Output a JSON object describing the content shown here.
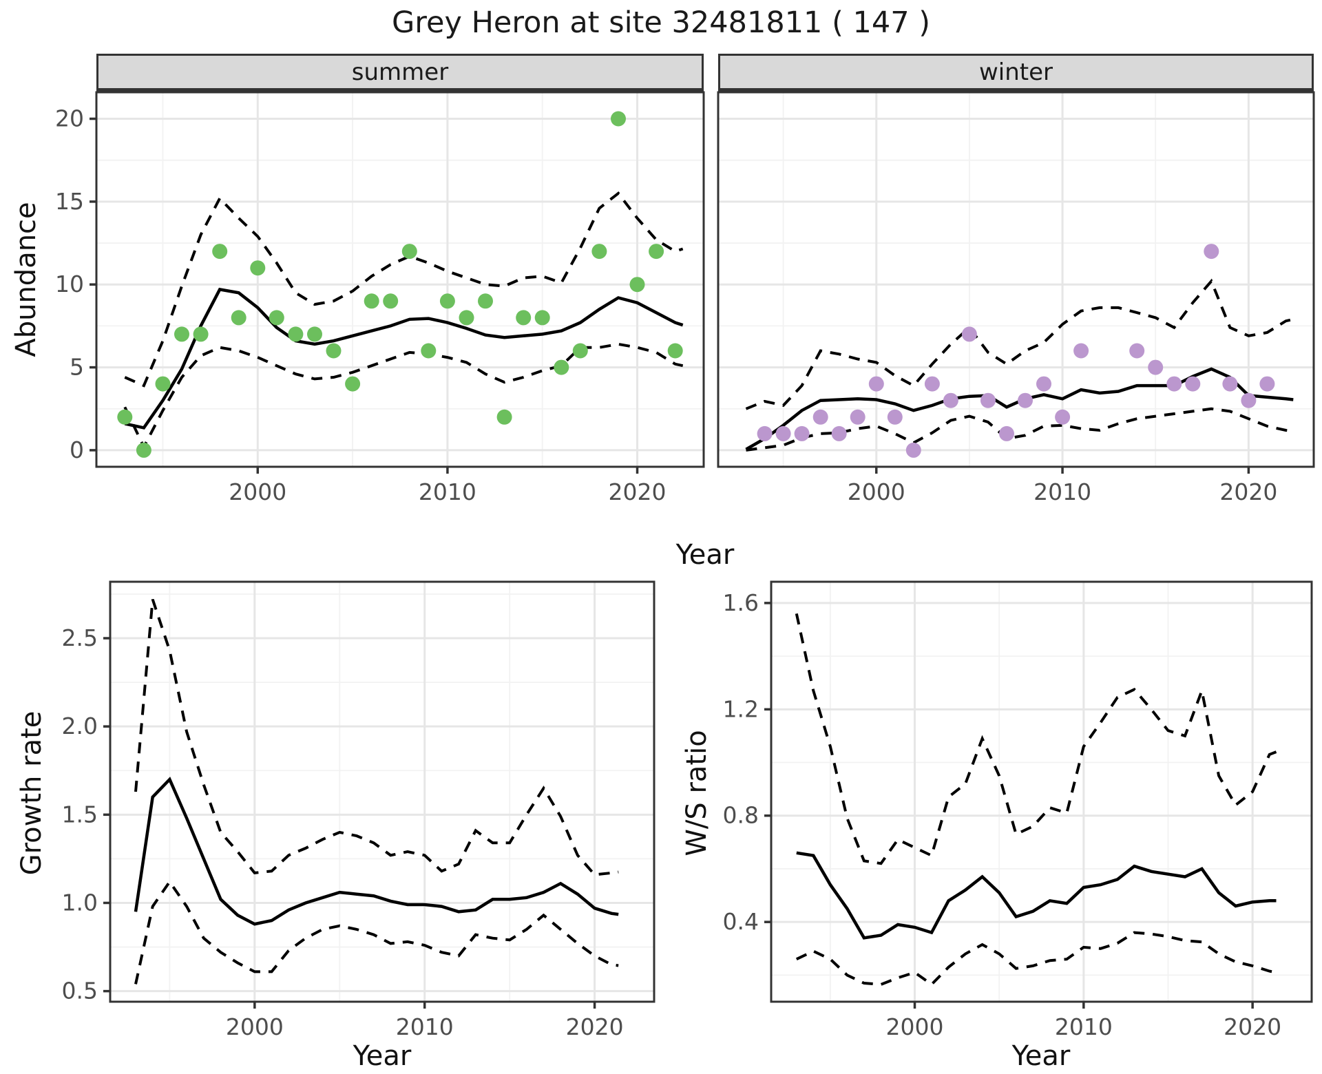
{
  "title": "Grey Heron at site 32481811 ( 147 )",
  "top_row": {
    "facets": [
      "summer",
      "winter"
    ],
    "shared_ylabel": "Abundance",
    "shared_xlabel": "Year"
  },
  "bottom_row": {
    "left_ylabel": "Growth rate",
    "left_xlabel": "Year",
    "right_ylabel": "W/S ratio",
    "right_xlabel": "Year"
  },
  "colors": {
    "summer_point": "#6CBF5D",
    "winter_point": "#BB97CE",
    "line": "#000000",
    "strip_bg": "#d9d9d9",
    "panel_border": "#333333",
    "grid_major": "#e6e6e6",
    "grid_minor": "#f2f2f2",
    "tick_text": "#4d4d4d"
  },
  "chart_data": [
    {
      "id": "abundance_summer",
      "type": "scatter",
      "facet": "summer",
      "ylabel": "Abundance",
      "xlabel": "Year",
      "xlim": [
        1991.5,
        2023.5
      ],
      "ylim": [
        -1,
        21.6
      ],
      "x_ticks": [
        2000,
        2010,
        2020
      ],
      "x_tick_labels": [
        "2000",
        "2010",
        "2020"
      ],
      "x_minor": [
        1995,
        2005,
        2015
      ],
      "y_ticks": [
        0,
        5,
        10,
        15,
        20
      ],
      "y_tick_labels": [
        "0",
        "5",
        "10",
        "15",
        "20"
      ],
      "y_minor": [
        2.5,
        7.5,
        12.5,
        17.5
      ],
      "points": [
        [
          1993,
          2
        ],
        [
          1994,
          0
        ],
        [
          1995,
          4
        ],
        [
          1996,
          7
        ],
        [
          1997,
          7
        ],
        [
          1998,
          12
        ],
        [
          1999,
          8
        ],
        [
          2000,
          11
        ],
        [
          2001,
          8
        ],
        [
          2002,
          7
        ],
        [
          2003,
          7
        ],
        [
          2004,
          6
        ],
        [
          2005,
          4
        ],
        [
          2006,
          9
        ],
        [
          2007,
          9
        ],
        [
          2008,
          12
        ],
        [
          2009,
          6
        ],
        [
          2010,
          9
        ],
        [
          2011,
          8
        ],
        [
          2012,
          9
        ],
        [
          2013,
          2
        ],
        [
          2014,
          8
        ],
        [
          2015,
          8
        ],
        [
          2016,
          5
        ],
        [
          2017,
          6
        ],
        [
          2018,
          12
        ],
        [
          2019,
          20
        ],
        [
          2020,
          10
        ],
        [
          2021,
          12
        ],
        [
          2022,
          6
        ]
      ],
      "mean_line": {
        "x": [
          1993,
          1994,
          1995,
          1996,
          1997,
          1998,
          1999,
          2000,
          2001,
          2002,
          2003,
          2004,
          2005,
          2006,
          2007,
          2008,
          2009,
          2010,
          2011,
          2012,
          2013,
          2014,
          2015,
          2016,
          2017,
          2018,
          2019,
          2020,
          2021,
          2022,
          2022.4
        ],
        "y": [
          1.6,
          1.35,
          3.0,
          4.9,
          7.5,
          9.7,
          9.5,
          8.6,
          7.4,
          6.6,
          6.4,
          6.6,
          6.9,
          7.2,
          7.5,
          7.9,
          7.95,
          7.7,
          7.35,
          6.95,
          6.8,
          6.9,
          7.0,
          7.2,
          7.7,
          8.5,
          9.2,
          8.9,
          8.3,
          7.7,
          7.55
        ]
      },
      "upper_ci": {
        "x": [
          1993,
          1994,
          1995,
          1996,
          1997,
          1998,
          1999,
          2000,
          2001,
          2002,
          2003,
          2004,
          2005,
          2006,
          2007,
          2008,
          2009,
          2010,
          2011,
          2012,
          2013,
          2014,
          2015,
          2016,
          2017,
          2018,
          2019,
          2020,
          2021,
          2022,
          2022.4
        ],
        "y": [
          4.4,
          3.9,
          6.6,
          9.9,
          13.0,
          15.2,
          14.0,
          12.9,
          11.3,
          9.5,
          8.8,
          9.0,
          9.6,
          10.5,
          11.2,
          11.7,
          11.3,
          10.8,
          10.4,
          10.0,
          9.9,
          10.4,
          10.5,
          10.1,
          12.2,
          14.6,
          15.5,
          14.0,
          12.7,
          12.0,
          12.15
        ]
      },
      "lower_ci": {
        "x": [
          1993,
          1994,
          1995,
          1996,
          1997,
          1998,
          1999,
          2000,
          2001,
          2002,
          2003,
          2004,
          2005,
          2006,
          2007,
          2008,
          2009,
          2010,
          2011,
          2012,
          2013,
          2014,
          2015,
          2016,
          2017,
          2018,
          2019,
          2020,
          2021,
          2022,
          2022.4
        ],
        "y": [
          2.6,
          0.2,
          2.4,
          4.4,
          5.7,
          6.2,
          6.0,
          5.6,
          5.1,
          4.6,
          4.3,
          4.4,
          4.7,
          5.1,
          5.5,
          5.9,
          5.8,
          5.6,
          5.3,
          4.6,
          4.1,
          4.4,
          4.8,
          5.1,
          6.2,
          6.2,
          6.4,
          6.2,
          5.9,
          5.2,
          5.1
        ]
      },
      "point_color": "#6CBF5D"
    },
    {
      "id": "abundance_winter",
      "type": "scatter",
      "facet": "winter",
      "ylabel": "Abundance",
      "xlabel": "Year",
      "xlim": [
        1991.5,
        2023.5
      ],
      "ylim": [
        -1,
        21.6
      ],
      "x_ticks": [
        2000,
        2010,
        2020
      ],
      "x_tick_labels": [
        "2000",
        "2010",
        "2020"
      ],
      "x_minor": [
        1995,
        2005,
        2015
      ],
      "y_ticks": [
        0,
        5,
        10,
        15,
        20
      ],
      "y_tick_labels": [
        "0",
        "5",
        "10",
        "15",
        "20"
      ],
      "y_minor": [
        2.5,
        7.5,
        12.5,
        17.5
      ],
      "points": [
        [
          1994,
          1
        ],
        [
          1995,
          1
        ],
        [
          1996,
          1
        ],
        [
          1997,
          2
        ],
        [
          1998,
          1
        ],
        [
          1999,
          2
        ],
        [
          2000,
          4
        ],
        [
          2001,
          2
        ],
        [
          2002,
          0
        ],
        [
          2003,
          4
        ],
        [
          2004,
          3
        ],
        [
          2005,
          7
        ],
        [
          2006,
          3
        ],
        [
          2007,
          1
        ],
        [
          2008,
          3
        ],
        [
          2009,
          4
        ],
        [
          2010,
          2
        ],
        [
          2011,
          6
        ],
        [
          2014,
          6
        ],
        [
          2015,
          5
        ],
        [
          2016,
          4
        ],
        [
          2017,
          4
        ],
        [
          2018,
          12
        ],
        [
          2019,
          4
        ],
        [
          2020,
          3
        ],
        [
          2021,
          4
        ]
      ],
      "mean_line": {
        "x": [
          1993,
          1994,
          1995,
          1996,
          1997,
          1998,
          1999,
          2000,
          2001,
          2002,
          2003,
          2004,
          2005,
          2006,
          2007,
          2008,
          2009,
          2010,
          2011,
          2012,
          2013,
          2014,
          2015,
          2016,
          2017,
          2018,
          2019,
          2020,
          2021,
          2022,
          2022.4
        ],
        "y": [
          0.05,
          0.7,
          1.5,
          2.4,
          3.0,
          3.05,
          3.1,
          3.05,
          2.8,
          2.4,
          2.7,
          3.1,
          3.25,
          3.3,
          2.6,
          3.1,
          3.35,
          3.1,
          3.65,
          3.45,
          3.55,
          3.9,
          3.9,
          3.9,
          4.45,
          4.9,
          4.4,
          3.3,
          3.2,
          3.1,
          3.05
        ]
      },
      "upper_ci": {
        "x": [
          1993,
          1994,
          1995,
          1996,
          1997,
          1998,
          1999,
          2000,
          2001,
          2002,
          2003,
          2004,
          2005,
          2006,
          2007,
          2008,
          2009,
          2010,
          2011,
          2012,
          2013,
          2014,
          2015,
          2016,
          2017,
          2018,
          2019,
          2020,
          2021,
          2022,
          2022.4
        ],
        "y": [
          2.5,
          2.95,
          2.7,
          3.9,
          6.0,
          5.8,
          5.5,
          5.3,
          4.5,
          3.9,
          5.2,
          6.4,
          7.4,
          5.9,
          5.2,
          6.0,
          6.5,
          7.6,
          8.4,
          8.6,
          8.6,
          8.3,
          8.0,
          7.4,
          8.9,
          10.2,
          7.4,
          6.9,
          7.1,
          7.8,
          7.9
        ]
      },
      "lower_ci": {
        "x": [
          1993,
          1994,
          1995,
          1996,
          1997,
          1998,
          1999,
          2000,
          2001,
          2002,
          2003,
          2004,
          2005,
          2006,
          2007,
          2008,
          2009,
          2010,
          2011,
          2012,
          2013,
          2014,
          2015,
          2016,
          2017,
          2018,
          2019,
          2020,
          2021,
          2022,
          2022.4
        ],
        "y": [
          0.0,
          0.15,
          0.3,
          0.75,
          1.0,
          1.05,
          1.3,
          1.45,
          1.0,
          0.45,
          1.05,
          1.8,
          2.05,
          1.7,
          0.7,
          0.9,
          1.45,
          1.5,
          1.3,
          1.2,
          1.6,
          1.9,
          2.05,
          2.2,
          2.35,
          2.5,
          2.35,
          1.9,
          1.45,
          1.2,
          1.15
        ]
      },
      "point_color": "#BB97CE"
    },
    {
      "id": "growth_rate",
      "type": "line",
      "facet": null,
      "ylabel": "Growth rate",
      "xlabel": "Year",
      "xlim": [
        1991.5,
        2023.5
      ],
      "ylim": [
        0.44,
        2.82
      ],
      "x_ticks": [
        2000,
        2010,
        2020
      ],
      "x_tick_labels": [
        "2000",
        "2010",
        "2020"
      ],
      "x_minor": [
        1995,
        2005,
        2015
      ],
      "y_ticks": [
        0.5,
        1.0,
        1.5,
        2.0,
        2.5
      ],
      "y_tick_labels": [
        "0.5",
        "1.0",
        "1.5",
        "2.0",
        "2.5"
      ],
      "y_minor": [
        0.75,
        1.25,
        1.75,
        2.25,
        2.75
      ],
      "points": [],
      "mean_line": {
        "x": [
          1993,
          1994,
          1995,
          1996,
          1997,
          1998,
          1999,
          2000,
          2001,
          2002,
          2003,
          2004,
          2005,
          2006,
          2007,
          2008,
          2009,
          2010,
          2011,
          2012,
          2013,
          2014,
          2015,
          2016,
          2017,
          2018,
          2019,
          2020,
          2021,
          2021.4
        ],
        "y": [
          0.95,
          1.6,
          1.7,
          1.48,
          1.25,
          1.02,
          0.93,
          0.88,
          0.9,
          0.96,
          1.0,
          1.03,
          1.06,
          1.05,
          1.04,
          1.01,
          0.99,
          0.99,
          0.98,
          0.95,
          0.96,
          1.02,
          1.02,
          1.03,
          1.06,
          1.11,
          1.05,
          0.97,
          0.94,
          0.935
        ]
      },
      "upper_ci": {
        "x": [
          1993,
          1994,
          1995,
          1996,
          1997,
          1998,
          1999,
          2000,
          2001,
          2002,
          2003,
          2004,
          2005,
          2006,
          2007,
          2008,
          2009,
          2010,
          2011,
          2012,
          2013,
          2014,
          2015,
          2016,
          2017,
          2018,
          2019,
          2020,
          2021,
          2021.4
        ],
        "y": [
          1.63,
          2.72,
          2.43,
          1.97,
          1.67,
          1.4,
          1.29,
          1.17,
          1.18,
          1.27,
          1.31,
          1.36,
          1.4,
          1.38,
          1.34,
          1.27,
          1.29,
          1.27,
          1.18,
          1.22,
          1.41,
          1.34,
          1.34,
          1.5,
          1.65,
          1.49,
          1.27,
          1.16,
          1.17,
          1.175
        ]
      },
      "lower_ci": {
        "x": [
          1993,
          1994,
          1995,
          1996,
          1997,
          1998,
          1999,
          2000,
          2001,
          2002,
          2003,
          2004,
          2005,
          2006,
          2007,
          2008,
          2009,
          2010,
          2011,
          2012,
          2013,
          2014,
          2015,
          2016,
          2017,
          2018,
          2019,
          2020,
          2021,
          2021.4
        ],
        "y": [
          0.54,
          0.98,
          1.12,
          0.98,
          0.8,
          0.72,
          0.66,
          0.61,
          0.61,
          0.73,
          0.8,
          0.85,
          0.87,
          0.85,
          0.82,
          0.77,
          0.78,
          0.76,
          0.72,
          0.7,
          0.82,
          0.8,
          0.79,
          0.85,
          0.93,
          0.85,
          0.77,
          0.7,
          0.65,
          0.645
        ]
      },
      "point_color": null
    },
    {
      "id": "ws_ratio",
      "type": "line",
      "facet": null,
      "ylabel": "W/S ratio",
      "xlabel": "Year",
      "xlim": [
        1991.5,
        2023.5
      ],
      "ylim": [
        0.1,
        1.68
      ],
      "x_ticks": [
        2000,
        2010,
        2020
      ],
      "x_tick_labels": [
        "2000",
        "2010",
        "2020"
      ],
      "x_minor": [
        1995,
        2005,
        2015
      ],
      "y_ticks": [
        0.4,
        0.8,
        1.2,
        1.6
      ],
      "y_tick_labels": [
        "0.4",
        "0.8",
        "1.2",
        "1.6"
      ],
      "y_minor": [
        0.2,
        0.6,
        1.0,
        1.4
      ],
      "points": [],
      "mean_line": {
        "x": [
          1993,
          1994,
          1995,
          1996,
          1997,
          1998,
          1999,
          2000,
          2001,
          2002,
          2003,
          2004,
          2005,
          2006,
          2007,
          2008,
          2009,
          2010,
          2011,
          2012,
          2013,
          2014,
          2015,
          2016,
          2017,
          2018,
          2019,
          2020,
          2021,
          2021.4
        ],
        "y": [
          0.66,
          0.65,
          0.54,
          0.45,
          0.34,
          0.35,
          0.39,
          0.38,
          0.36,
          0.48,
          0.52,
          0.57,
          0.51,
          0.42,
          0.44,
          0.48,
          0.47,
          0.53,
          0.54,
          0.56,
          0.61,
          0.59,
          0.58,
          0.57,
          0.6,
          0.51,
          0.46,
          0.475,
          0.48,
          0.48
        ]
      },
      "upper_ci": {
        "x": [
          1993,
          1994,
          1995,
          1996,
          1997,
          1998,
          1999,
          2000,
          2001,
          2002,
          2003,
          2004,
          2005,
          2006,
          2007,
          2008,
          2009,
          2010,
          2011,
          2012,
          2013,
          2014,
          2015,
          2016,
          2017,
          2018,
          2019,
          2020,
          2021,
          2021.4
        ],
        "y": [
          1.56,
          1.27,
          1.06,
          0.79,
          0.63,
          0.62,
          0.71,
          0.68,
          0.65,
          0.87,
          0.92,
          1.09,
          0.95,
          0.73,
          0.76,
          0.83,
          0.81,
          1.06,
          1.15,
          1.245,
          1.275,
          1.2,
          1.12,
          1.1,
          1.27,
          0.95,
          0.84,
          0.89,
          1.03,
          1.04
        ]
      },
      "lower_ci": {
        "x": [
          1993,
          1994,
          1995,
          1996,
          1997,
          1998,
          1999,
          2000,
          2001,
          2002,
          2003,
          2004,
          2005,
          2006,
          2007,
          2008,
          2009,
          2010,
          2011,
          2012,
          2013,
          2014,
          2015,
          2016,
          2017,
          2018,
          2019,
          2020,
          2021,
          2021.4
        ],
        "y": [
          0.26,
          0.29,
          0.26,
          0.2,
          0.17,
          0.165,
          0.19,
          0.21,
          0.165,
          0.23,
          0.28,
          0.315,
          0.28,
          0.225,
          0.235,
          0.255,
          0.26,
          0.305,
          0.3,
          0.32,
          0.36,
          0.355,
          0.345,
          0.33,
          0.325,
          0.28,
          0.25,
          0.235,
          0.215,
          0.21
        ]
      },
      "point_color": null
    }
  ]
}
